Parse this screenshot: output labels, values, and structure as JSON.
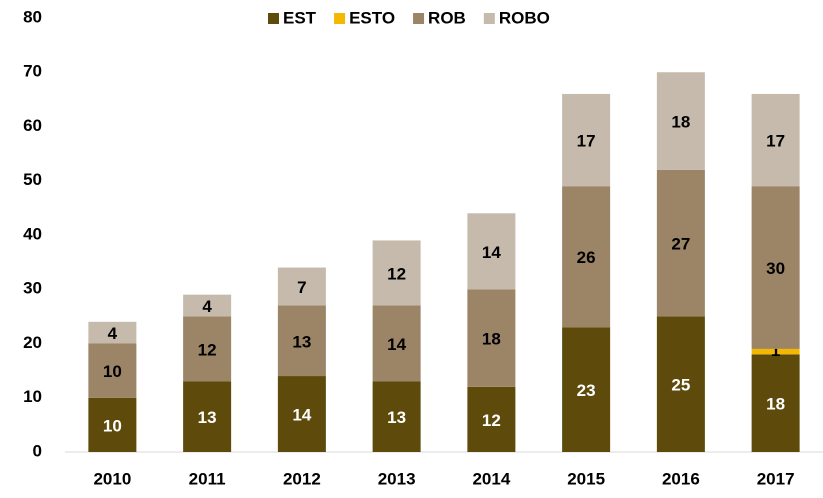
{
  "chart_data": {
    "type": "stacked_bar",
    "categories": [
      "2010",
      "2011",
      "2012",
      "2013",
      "2014",
      "2015",
      "2016",
      "2017"
    ],
    "series": [
      {
        "name": "EST",
        "color": "#5e4a0b",
        "values": [
          10,
          13,
          14,
          13,
          12,
          23,
          25,
          18
        ]
      },
      {
        "name": "ESTO",
        "color": "#f5b800",
        "values": [
          null,
          null,
          null,
          null,
          null,
          null,
          null,
          1
        ]
      },
      {
        "name": "ROB",
        "color": "#9b8566",
        "values": [
          10,
          12,
          13,
          14,
          18,
          26,
          27,
          30
        ]
      },
      {
        "name": "ROBO",
        "color": "#c5baab",
        "values": [
          4,
          4,
          7,
          12,
          14,
          17,
          18,
          17
        ]
      }
    ],
    "ylim": [
      0,
      80
    ],
    "yticks": [
      0,
      10,
      20,
      30,
      40,
      50,
      60,
      70,
      80
    ],
    "grid": false,
    "legend": "top"
  }
}
